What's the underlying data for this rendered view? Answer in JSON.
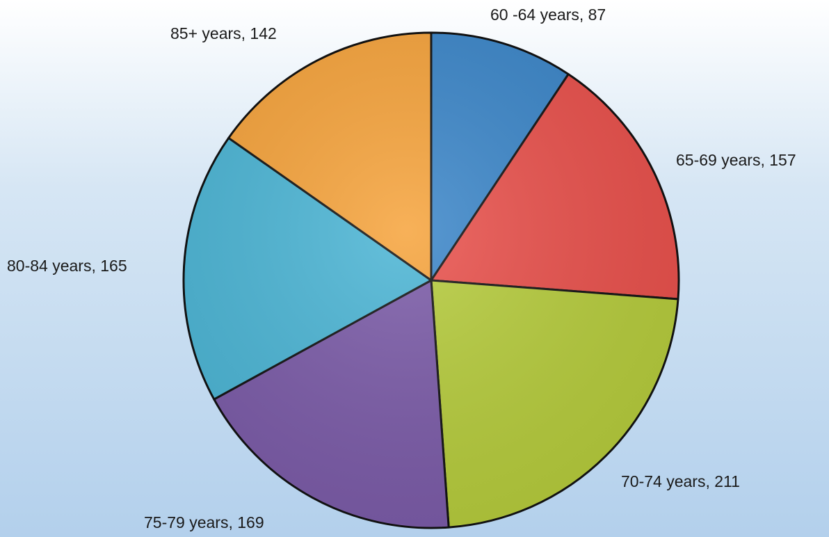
{
  "chart_data": {
    "type": "pie",
    "labels": [
      "60 -64 years, 87",
      "65-69 years, 157",
      "70-74 years, 211",
      "75-79 years, 169",
      "80-84 years, 165",
      "85+ years, 142"
    ],
    "values": [
      87,
      157,
      211,
      169,
      165,
      142
    ],
    "colors": [
      "#3b86c9",
      "#e9504b",
      "#b6cc3c",
      "#7b5ba8",
      "#4bb5d5",
      "#f6a33b"
    ]
  }
}
